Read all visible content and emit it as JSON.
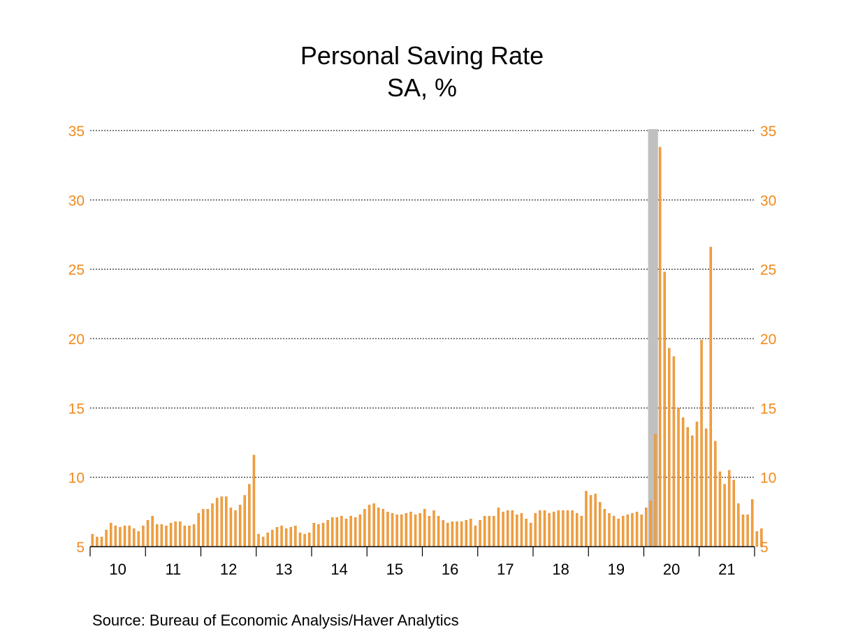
{
  "chart_data": {
    "type": "bar",
    "title": "Personal Saving Rate",
    "subtitle": "SA, %",
    "source": "Source:  Bureau of Economic Analysis/Haver Analytics",
    "ylim": [
      5,
      35
    ],
    "y_ticks": [
      "5",
      "10",
      "15",
      "20",
      "25",
      "30",
      "35"
    ],
    "x_tick_labels": [
      "10",
      "11",
      "12",
      "13",
      "14",
      "15",
      "16",
      "17",
      "18",
      "19",
      "20",
      "21"
    ],
    "grid": "horizontal dotted",
    "y_axis": "both sides",
    "colors": {
      "bar": "#f0a040",
      "bar_edge": "#e08a2a",
      "tick_label": "#f08a1e",
      "recession": "#c0c0c0",
      "axis": "#000000"
    },
    "recession_shading": {
      "start_index": 121,
      "end_index": 122
    },
    "start": "2010-01",
    "frequency": "monthly",
    "values": [
      5.9,
      5.7,
      5.7,
      6.2,
      6.7,
      6.5,
      6.4,
      6.5,
      6.5,
      6.3,
      6.1,
      6.5,
      6.9,
      7.2,
      6.6,
      6.6,
      6.5,
      6.7,
      6.8,
      6.8,
      6.5,
      6.5,
      6.6,
      7.4,
      7.7,
      7.7,
      8.1,
      8.5,
      8.6,
      8.6,
      7.8,
      7.6,
      8.0,
      8.7,
      9.5,
      11.6,
      5.9,
      5.7,
      6.0,
      6.2,
      6.4,
      6.5,
      6.3,
      6.4,
      6.5,
      6.0,
      5.9,
      6.0,
      6.7,
      6.6,
      6.7,
      6.9,
      7.1,
      7.1,
      7.2,
      7.0,
      7.2,
      7.1,
      7.3,
      7.7,
      8.0,
      8.1,
      7.8,
      7.7,
      7.5,
      7.4,
      7.3,
      7.3,
      7.4,
      7.5,
      7.3,
      7.4,
      7.7,
      7.2,
      7.6,
      7.2,
      6.9,
      6.7,
      6.8,
      6.8,
      6.8,
      6.9,
      7.0,
      6.5,
      6.9,
      7.2,
      7.2,
      7.2,
      7.8,
      7.5,
      7.6,
      7.6,
      7.3,
      7.4,
      7.0,
      6.7,
      7.4,
      7.6,
      7.6,
      7.4,
      7.5,
      7.6,
      7.6,
      7.6,
      7.6,
      7.4,
      7.2,
      9.0,
      8.7,
      8.8,
      8.2,
      7.7,
      7.4,
      7.2,
      7.0,
      7.2,
      7.3,
      7.4,
      7.5,
      7.3,
      7.8,
      8.3,
      13.1,
      33.8,
      24.8,
      19.3,
      18.7,
      15.0,
      14.3,
      13.6,
      13.0,
      14.0,
      19.9,
      13.5,
      26.6,
      12.6,
      10.4,
      9.5,
      10.5,
      9.8,
      8.1,
      7.3,
      7.3,
      8.4,
      6.1,
      6.3
    ]
  }
}
